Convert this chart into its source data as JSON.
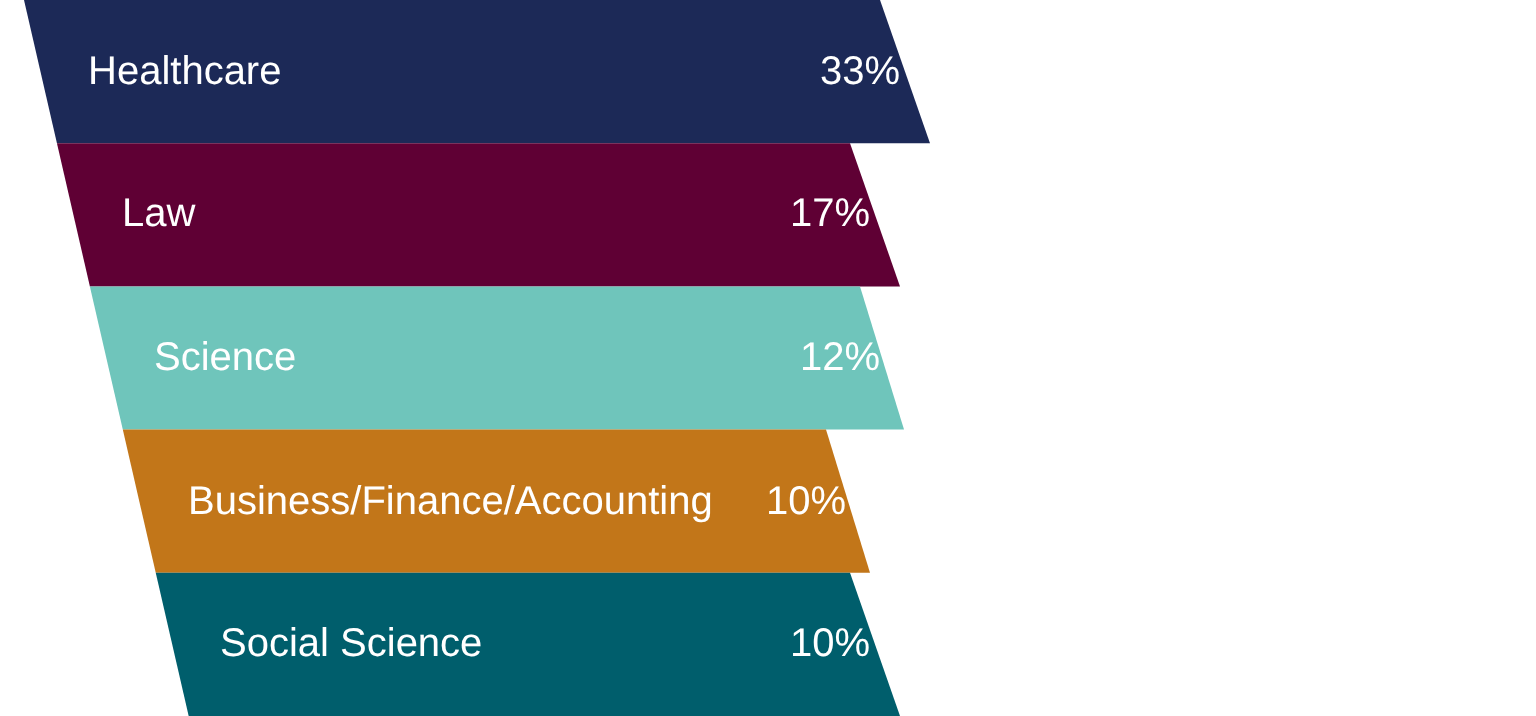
{
  "chart_data": {
    "type": "other",
    "categories": [
      "Healthcare",
      "Law",
      "Science",
      "Business/Finance/Accounting",
      "Social Science"
    ],
    "values": [
      33,
      17,
      12,
      10,
      10
    ],
    "value_labels": [
      "33%",
      "17%",
      "12%",
      "10%",
      "10%"
    ],
    "colors": [
      "#1c2957",
      "#5f0034",
      "#6fc5bb",
      "#c27619",
      "#005e6c"
    ]
  }
}
